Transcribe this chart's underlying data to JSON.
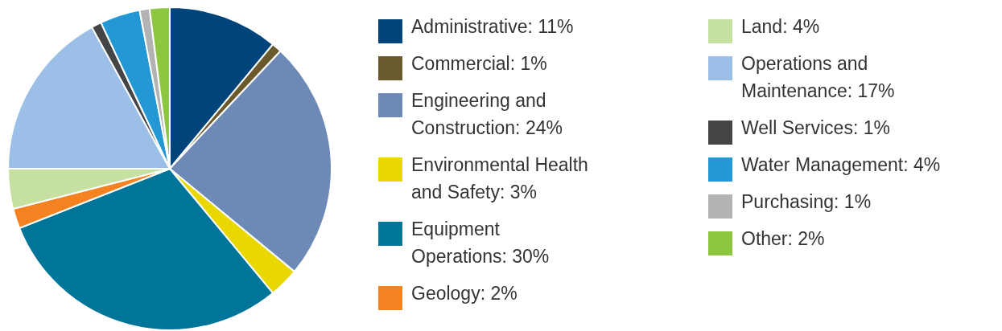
{
  "chart_data": {
    "type": "pie",
    "categories": [
      "Administrative: 11%",
      "Commercial: 1%",
      "Engineering and Construction: 24%",
      "Environmental Health and Safety: 3%",
      "Equipment Operations: 30%",
      "Geology: 2%",
      "Land: 4%",
      "Operations and Maintenance: 17%",
      "Well Services: 1%",
      "Water Management: 4%",
      "Purchasing: 1%",
      "Other: 2%"
    ],
    "values": [
      11,
      1,
      24,
      3,
      30,
      2,
      4,
      17,
      1,
      4,
      1,
      2
    ],
    "colors": [
      "#00447c",
      "#6b5a2e",
      "#6d89b5",
      "#e8d800",
      "#00759a",
      "#f58220",
      "#c5e0a0",
      "#9bbfe6",
      "#444547",
      "#2398d5",
      "#b3b3b3",
      "#8dc63f"
    ],
    "legend": "right"
  }
}
